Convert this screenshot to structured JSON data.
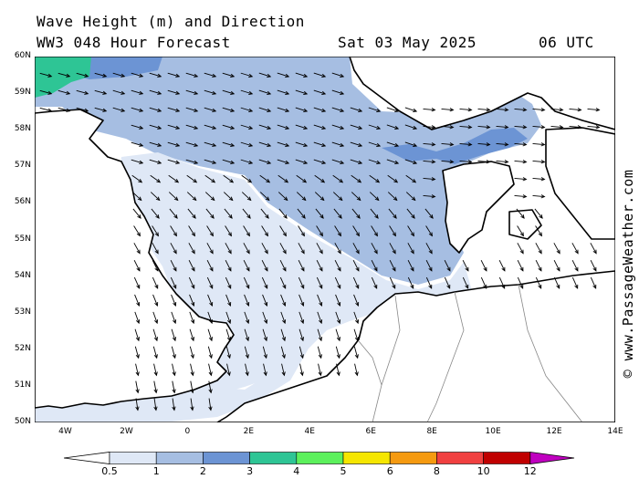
{
  "header": {
    "line1": "Wave Height (m) and Direction",
    "line2": "WW3 048 Hour Forecast",
    "date": "Sat 03 May 2025",
    "time": "06 UTC"
  },
  "side_credit": "© www.PassageWeather.com",
  "map": {
    "lat_range": [
      50,
      60
    ],
    "lon_range": [
      -5,
      14
    ],
    "lat_labels": [
      "60N",
      "59N",
      "58N",
      "57N",
      "56N",
      "55N",
      "54N",
      "53N",
      "52N",
      "51N",
      "50N"
    ],
    "lat_values": [
      60,
      59,
      58,
      57,
      56,
      55,
      54,
      53,
      52,
      51,
      50
    ],
    "lon_labels": [
      "4W",
      "2W",
      "0",
      "2E",
      "4E",
      "6E",
      "8E",
      "10E",
      "12E",
      "14E"
    ],
    "lon_values": [
      -4,
      -2,
      0,
      2,
      4,
      6,
      8,
      10,
      12,
      14
    ],
    "wave_direction": "arrows point generally south-east over the North Sea"
  },
  "colorbar": {
    "labels": [
      "0.5",
      "1",
      "2",
      "3",
      "4",
      "5",
      "6",
      "8",
      "10",
      "12"
    ],
    "colors": [
      "#dfe8f6",
      "#a6bee2",
      "#6c94d4",
      "#2ec595",
      "#5cf05c",
      "#f5e600",
      "#f59a10",
      "#f04040",
      "#c00000",
      "#c000c0"
    ]
  }
}
